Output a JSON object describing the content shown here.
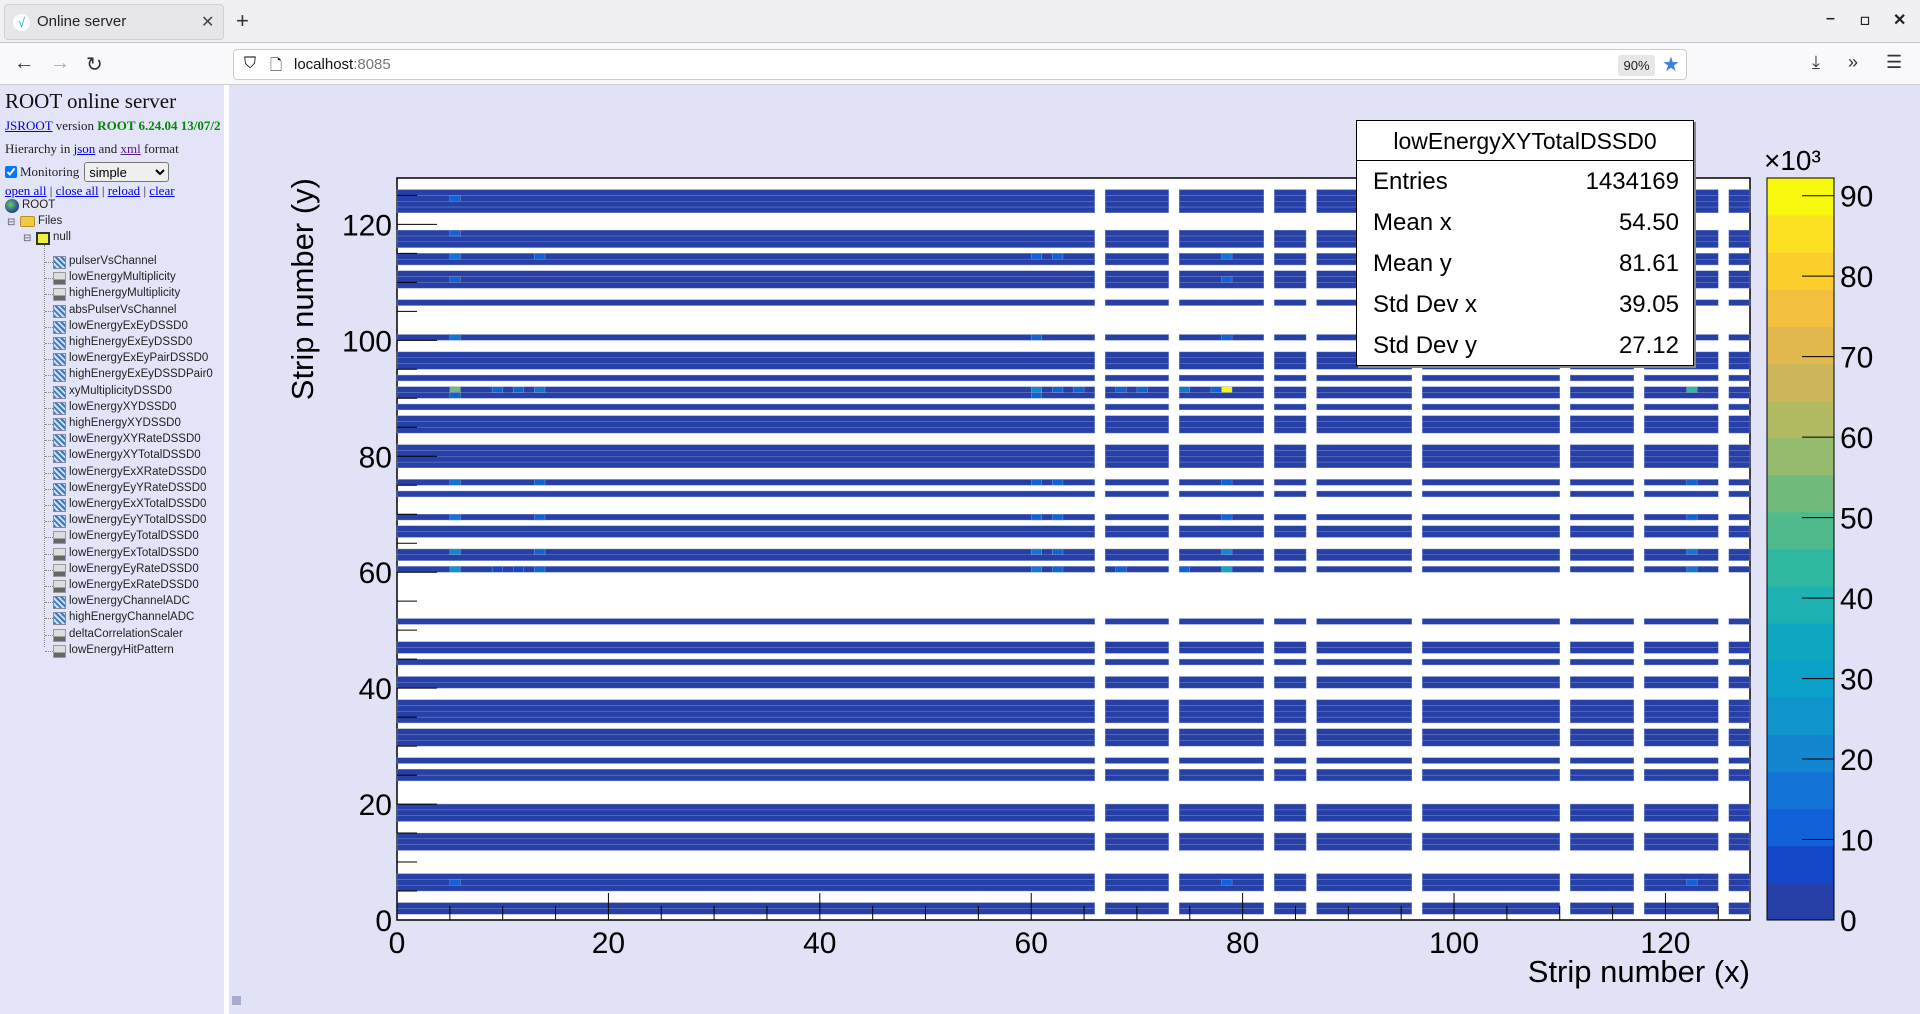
{
  "browser": {
    "tab_title": "Online server",
    "url_host": "localhost",
    "url_port": ":8085",
    "zoom": "90%"
  },
  "sidebar": {
    "title": "ROOT online server",
    "jsroot_link": "JSROOT",
    "version_text": "version",
    "version": "ROOT 6.24.04 13/07/2",
    "hierarchy_pre": "Hierarchy in",
    "json_link": "json",
    "and": "and",
    "xml_link": "xml",
    "format": "format",
    "monitoring_label": "Monitoring",
    "monitoring_checked": true,
    "monitoring_mode": "simple",
    "links": [
      "open all",
      "close all",
      "reload",
      "clear"
    ],
    "root_label": "ROOT",
    "files_label": "Files",
    "null_label": "null",
    "items": [
      {
        "label": "pulserVsChannel",
        "type": "h2"
      },
      {
        "label": "lowEnergyMultiplicity",
        "type": "h1"
      },
      {
        "label": "highEnergyMultiplicity",
        "type": "h1"
      },
      {
        "label": "absPulserVsChannel",
        "type": "h2"
      },
      {
        "label": "lowEnergyExEyDSSD0",
        "type": "h2"
      },
      {
        "label": "highEnergyExEyDSSD0",
        "type": "h2"
      },
      {
        "label": "lowEnergyExEyPairDSSD0",
        "type": "h2"
      },
      {
        "label": "highEnergyExEyDSSDPair0",
        "type": "h2"
      },
      {
        "label": "xyMultiplicityDSSD0",
        "type": "h2"
      },
      {
        "label": "lowEnergyXYDSSD0",
        "type": "h2"
      },
      {
        "label": "highEnergyXYDSSD0",
        "type": "h2"
      },
      {
        "label": "lowEnergyXYRateDSSD0",
        "type": "h2"
      },
      {
        "label": "lowEnergyXYTotalDSSD0",
        "type": "h2"
      },
      {
        "label": "lowEnergyExXRateDSSD0",
        "type": "h2"
      },
      {
        "label": "lowEnergyEyYRateDSSD0",
        "type": "h2"
      },
      {
        "label": "lowEnergyExXTotalDSSD0",
        "type": "h2"
      },
      {
        "label": "lowEnergyEyYTotalDSSD0",
        "type": "h2"
      },
      {
        "label": "lowEnergyEyTotalDSSD0",
        "type": "h1"
      },
      {
        "label": "lowEnergyExTotalDSSD0",
        "type": "h1"
      },
      {
        "label": "lowEnergyEyRateDSSD0",
        "type": "h1"
      },
      {
        "label": "lowEnergyExRateDSSD0",
        "type": "h1"
      },
      {
        "label": "lowEnergyChannelADC",
        "type": "h2"
      },
      {
        "label": "highEnergyChannelADC",
        "type": "h2"
      },
      {
        "label": "deltaCorrelationScaler",
        "type": "h1"
      },
      {
        "label": "lowEnergyHitPattern",
        "type": "h1"
      }
    ]
  },
  "stats": {
    "title": "lowEnergyXYTotalDSSD0",
    "rows": [
      {
        "label": "Entries",
        "value": "1434169"
      },
      {
        "label": "Mean x",
        "value": "54.50"
      },
      {
        "label": "Mean y",
        "value": "81.61"
      },
      {
        "label": "Std Dev x",
        "value": "39.05"
      },
      {
        "label": "Std Dev y",
        "value": "27.12"
      }
    ]
  },
  "chart_data": {
    "type": "heatmap",
    "title": "lowEnergyXYTotalDSSD0",
    "xlabel": "Strip number (x)",
    "ylabel": "Strip number (y)",
    "xlim": [
      0,
      128
    ],
    "ylim": [
      0,
      128
    ],
    "nbins_x": 128,
    "nbins_y": 128,
    "xticks": [
      0,
      20,
      40,
      60,
      80,
      100,
      120
    ],
    "yticks": [
      0,
      20,
      40,
      60,
      80,
      100,
      120
    ],
    "zlim": [
      0,
      92200
    ],
    "z_multiplier_label": "×10³",
    "zticks": [
      0,
      10,
      20,
      30,
      40,
      50,
      60,
      70,
      80,
      90
    ],
    "filled_rows": [
      1,
      2,
      5,
      6,
      7,
      12,
      13,
      14,
      17,
      18,
      19,
      24,
      25,
      27,
      30,
      31,
      32,
      34,
      35,
      36,
      37,
      40,
      41,
      44,
      46,
      47,
      51,
      60,
      62,
      63,
      66,
      67,
      69,
      73,
      75,
      78,
      79,
      80,
      81,
      84,
      85,
      86,
      88,
      90,
      91,
      93,
      95,
      96,
      97,
      100,
      106,
      109,
      110,
      111,
      113,
      114,
      116,
      117,
      118,
      122,
      123,
      124,
      125
    ],
    "empty_columns": [
      66,
      73,
      82,
      86,
      96,
      110,
      117,
      125
    ],
    "baseline_value": 1500,
    "hot_cells": [
      {
        "x": 78,
        "y": 91,
        "z": 91000
      },
      {
        "x": 5,
        "y": 91,
        "z": 52000
      },
      {
        "x": 122,
        "y": 91,
        "z": 44000
      },
      {
        "x": 78,
        "y": 60,
        "z": 36000
      },
      {
        "x": 5,
        "y": 60,
        "z": 27000
      },
      {
        "x": 5,
        "y": 63,
        "z": 20000
      },
      {
        "x": 78,
        "y": 63,
        "z": 22000
      },
      {
        "x": 122,
        "y": 63,
        "z": 16000
      },
      {
        "x": 122,
        "y": 60,
        "z": 16000
      },
      {
        "x": 5,
        "y": 124,
        "z": 12000
      },
      {
        "x": 5,
        "y": 118,
        "z": 12000
      },
      {
        "x": 5,
        "y": 114,
        "z": 14000
      },
      {
        "x": 5,
        "y": 110,
        "z": 10000
      },
      {
        "x": 5,
        "y": 100,
        "z": 14000
      },
      {
        "x": 5,
        "y": 90,
        "z": 12000
      },
      {
        "x": 5,
        "y": 75,
        "z": 14000
      },
      {
        "x": 5,
        "y": 69,
        "z": 14000
      },
      {
        "x": 5,
        "y": 6,
        "z": 12000
      },
      {
        "x": 13,
        "y": 114,
        "z": 12000
      },
      {
        "x": 13,
        "y": 91,
        "z": 14000
      },
      {
        "x": 13,
        "y": 75,
        "z": 12000
      },
      {
        "x": 13,
        "y": 69,
        "z": 12000
      },
      {
        "x": 13,
        "y": 63,
        "z": 12000
      },
      {
        "x": 13,
        "y": 60,
        "z": 12000
      },
      {
        "x": 9,
        "y": 91,
        "z": 10000
      },
      {
        "x": 11,
        "y": 91,
        "z": 10000
      },
      {
        "x": 9,
        "y": 60,
        "z": 9000
      },
      {
        "x": 11,
        "y": 60,
        "z": 9000
      },
      {
        "x": 60,
        "y": 114,
        "z": 10000
      },
      {
        "x": 60,
        "y": 100,
        "z": 11000
      },
      {
        "x": 60,
        "y": 91,
        "z": 20000
      },
      {
        "x": 60,
        "y": 90,
        "z": 12000
      },
      {
        "x": 60,
        "y": 75,
        "z": 12000
      },
      {
        "x": 60,
        "y": 69,
        "z": 12000
      },
      {
        "x": 60,
        "y": 63,
        "z": 14000
      },
      {
        "x": 60,
        "y": 60,
        "z": 14000
      },
      {
        "x": 62,
        "y": 114,
        "z": 10000
      },
      {
        "x": 62,
        "y": 91,
        "z": 12000
      },
      {
        "x": 62,
        "y": 75,
        "z": 12000
      },
      {
        "x": 62,
        "y": 69,
        "z": 12000
      },
      {
        "x": 62,
        "y": 63,
        "z": 12000
      },
      {
        "x": 62,
        "y": 60,
        "z": 12000
      },
      {
        "x": 64,
        "y": 91,
        "z": 10000
      },
      {
        "x": 68,
        "y": 91,
        "z": 12000
      },
      {
        "x": 70,
        "y": 91,
        "z": 12000
      },
      {
        "x": 74,
        "y": 91,
        "z": 14000
      },
      {
        "x": 77,
        "y": 91,
        "z": 10000
      },
      {
        "x": 68,
        "y": 60,
        "z": 10000
      },
      {
        "x": 74,
        "y": 60,
        "z": 10000
      },
      {
        "x": 78,
        "y": 114,
        "z": 18000
      },
      {
        "x": 78,
        "y": 110,
        "z": 10000
      },
      {
        "x": 78,
        "y": 100,
        "z": 10000
      },
      {
        "x": 78,
        "y": 75,
        "z": 10000
      },
      {
        "x": 78,
        "y": 69,
        "z": 10000
      },
      {
        "x": 78,
        "y": 6,
        "z": 10000
      },
      {
        "x": 122,
        "y": 75,
        "z": 12000
      },
      {
        "x": 122,
        "y": 69,
        "z": 12000
      },
      {
        "x": 122,
        "y": 6,
        "z": 10000
      }
    ],
    "palette": [
      "#2640a8",
      "#1446c8",
      "#1162d8",
      "#1373d6",
      "#1485d0",
      "#0f94cc",
      "#0aa0c8",
      "#0da8c0",
      "#1eb1b2",
      "#2eb8a0",
      "#4fba8c",
      "#72ba7c",
      "#94bb6e",
      "#b2bb62",
      "#cdb65a",
      "#e0b84e",
      "#f2c03e",
      "#fcce2c",
      "#fae020",
      "#f8f80e"
    ],
    "grid": false,
    "legend": "none"
  }
}
